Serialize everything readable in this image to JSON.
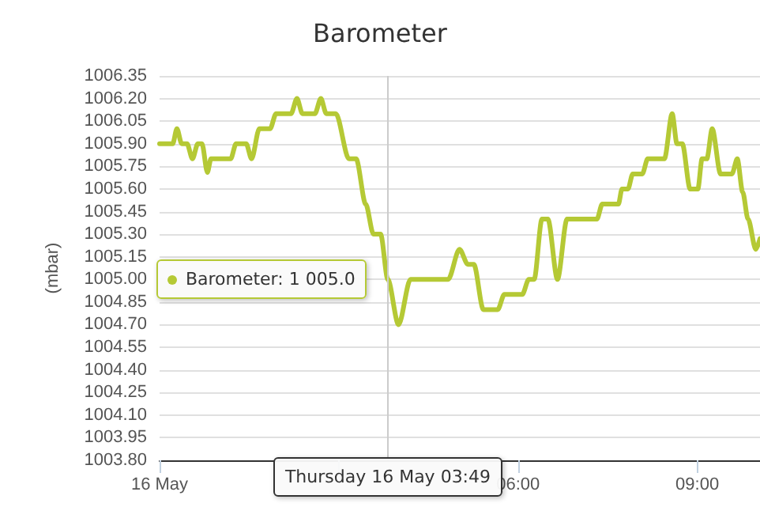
{
  "chart_data": {
    "type": "line",
    "title": "Barometer",
    "ylabel": "(mbar)",
    "x": [
      0,
      0.22,
      0.29,
      0.37,
      0.46,
      0.55,
      0.64,
      0.71,
      0.8,
      0.86,
      1.19,
      1.28,
      1.45,
      1.54,
      1.67,
      1.85,
      1.95,
      2.2,
      2.3,
      2.39,
      2.6,
      2.7,
      2.79,
      2.95,
      3.17,
      3.29,
      3.45,
      3.58,
      3.7,
      3.82,
      4.0,
      4.2,
      4.83,
      5.02,
      5.16,
      5.26,
      5.42,
      5.66,
      5.77,
      6.07,
      6.18,
      6.27,
      6.4,
      6.5,
      6.66,
      6.82,
      7.32,
      7.41,
      7.68,
      7.74,
      7.84,
      7.92,
      8.08,
      8.17,
      8.45,
      8.58,
      8.66,
      8.75,
      8.88,
      9.01,
      9.08,
      9.16,
      9.25,
      9.39,
      9.58,
      9.67,
      9.76,
      9.85,
      9.98,
      10.05
    ],
    "series": [
      {
        "color": "#b5c935",
        "values": [
          1005.9,
          1005.9,
          1006.0,
          1005.9,
          1005.9,
          1005.8,
          1005.9,
          1005.9,
          1005.71,
          1005.8,
          1005.8,
          1005.9,
          1005.9,
          1005.8,
          1006.0,
          1006.0,
          1006.1,
          1006.1,
          1006.2,
          1006.1,
          1006.1,
          1006.2,
          1006.1,
          1006.1,
          1005.8,
          1005.8,
          1005.5,
          1005.3,
          1005.3,
          1005.0,
          1004.7,
          1005.0,
          1005.0,
          1005.2,
          1005.1,
          1005.1,
          1004.8,
          1004.8,
          1004.9,
          1004.9,
          1005.0,
          1005.0,
          1005.4,
          1005.4,
          1005.0,
          1005.4,
          1005.4,
          1005.5,
          1005.5,
          1005.6,
          1005.6,
          1005.7,
          1005.7,
          1005.8,
          1005.8,
          1006.1,
          1005.9,
          1005.9,
          1005.6,
          1005.6,
          1005.8,
          1005.8,
          1006.0,
          1005.7,
          1005.7,
          1005.8,
          1005.58,
          1005.4,
          1005.2,
          1005.27
        ]
      }
    ],
    "xlim": [
      0,
      10.05
    ],
    "xticks": [
      {
        "value": 0,
        "label": "16 May"
      },
      {
        "value": 3,
        "label": null
      },
      {
        "value": 6,
        "label": "06:00"
      },
      {
        "value": 9,
        "label": "09:00"
      }
    ],
    "ylim": [
      1003.8,
      1006.35
    ],
    "yticks": [
      {
        "value": 1003.8,
        "label": "1003.80"
      },
      {
        "value": 1003.95,
        "label": "1003.95"
      },
      {
        "value": 1004.1,
        "label": "1004.10"
      },
      {
        "value": 1004.25,
        "label": "1004.25"
      },
      {
        "value": 1004.4,
        "label": "1004.40"
      },
      {
        "value": 1004.55,
        "label": "1004.55"
      },
      {
        "value": 1004.7,
        "label": "1004.70"
      },
      {
        "value": 1004.85,
        "label": "1004.85"
      },
      {
        "value": 1005.0,
        "label": "1005.00"
      },
      {
        "value": 1005.15,
        "label": "1005.15"
      },
      {
        "value": 1005.3,
        "label": "1005.30"
      },
      {
        "value": 1005.45,
        "label": "1005.45"
      },
      {
        "value": 1005.6,
        "label": "1005.60"
      },
      {
        "value": 1005.75,
        "label": "1005.75"
      },
      {
        "value": 1005.9,
        "label": "1005.90"
      },
      {
        "value": 1006.05,
        "label": "1006.05"
      },
      {
        "value": 1006.2,
        "label": "1006.20"
      },
      {
        "value": 1006.35,
        "label": "1006.35"
      }
    ],
    "grid": "y",
    "marker": "none",
    "line_style": "solid",
    "ref_lines": [
      {
        "axis": "x",
        "value": 3.82,
        "color": "#cccccc"
      }
    ],
    "annotations": [
      {
        "text": "Barometer: 1 005.0",
        "x": 3.82,
        "y": 1005.0
      },
      "Thursday 16 May 03:49"
    ]
  }
}
